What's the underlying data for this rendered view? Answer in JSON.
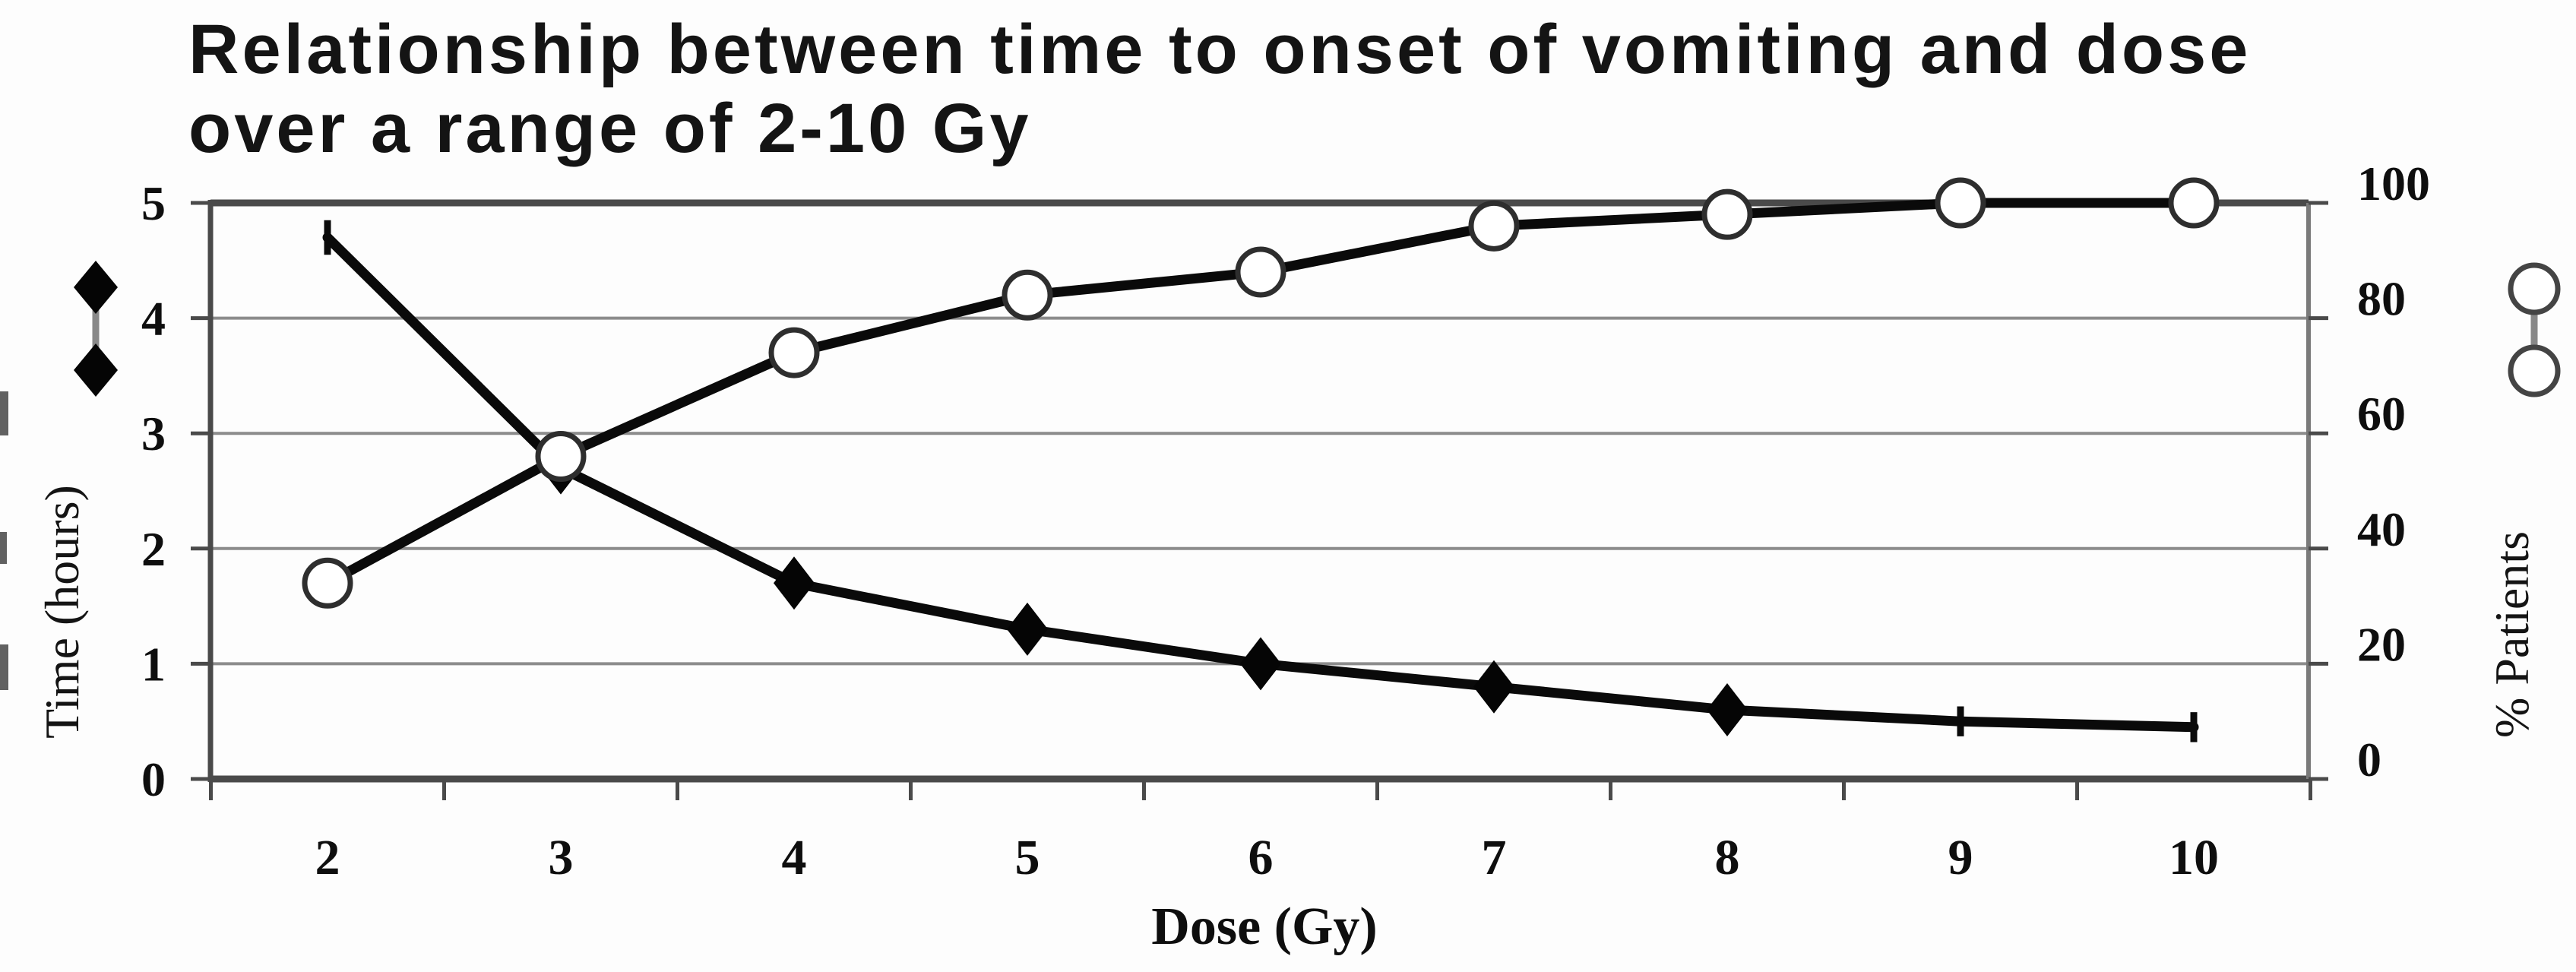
{
  "title": {
    "line1": "Relationship between time to onset of vomiting and dose",
    "line2": "over a range of 2-10 Gy"
  },
  "chart_data": {
    "type": "line",
    "title": "Relationship between time to onset of vomiting and dose over a range of 2-10 Gy",
    "xlabel": "Dose (Gy)",
    "x": [
      2,
      3,
      4,
      5,
      6,
      7,
      8,
      9,
      10
    ],
    "x_tick_labels": [
      "2",
      "3",
      "4",
      "5",
      "6",
      "7",
      "8",
      "9",
      "10"
    ],
    "grid": true,
    "legend_position": "outside-left-and-right",
    "axes": {
      "left": {
        "label": "Time (hours)",
        "range": [
          0,
          5
        ],
        "ticks": [
          0,
          1,
          2,
          3,
          4,
          5
        ]
      },
      "right": {
        "label": "% Patients",
        "range": [
          0,
          100
        ],
        "ticks": [
          0,
          20,
          40,
          60,
          80,
          100
        ]
      }
    },
    "series": [
      {
        "name": "Time (hours)",
        "axis": "left",
        "marker": "filled-diamond",
        "color": "#0a0a0a",
        "values": [
          4.7,
          2.7,
          1.7,
          1.3,
          1.0,
          0.8,
          0.6,
          0.5,
          0.45
        ],
        "marker_at_x": [
          3,
          4,
          5,
          6,
          7,
          8
        ],
        "error_bars": [
          {
            "x": 2,
            "low": 4.55,
            "high": 4.85
          },
          {
            "x": 9,
            "low": 0.37,
            "high": 0.63
          },
          {
            "x": 10,
            "low": 0.32,
            "high": 0.58
          }
        ]
      },
      {
        "name": "% Patients",
        "axis": "right",
        "marker": "open-circle",
        "color": "#0a0a0a",
        "values": [
          34,
          56,
          74,
          84,
          88,
          96,
          98,
          100,
          100
        ],
        "marker_at_x": [
          2,
          3,
          4,
          5,
          6,
          7,
          8,
          9,
          10
        ]
      }
    ]
  },
  "legend": {
    "left_marker": "filled-diamond",
    "right_marker": "open-circle"
  },
  "colors": {
    "line": "#0a0a0a",
    "gridline": "#8c8c8c",
    "axis": "#4a4a4a",
    "right_border": "#7a7a7a",
    "marker_fill_open": "#ffffff",
    "marker_stroke": "#2e2e2e",
    "background": "#fdfdfd",
    "text": "#141414"
  }
}
